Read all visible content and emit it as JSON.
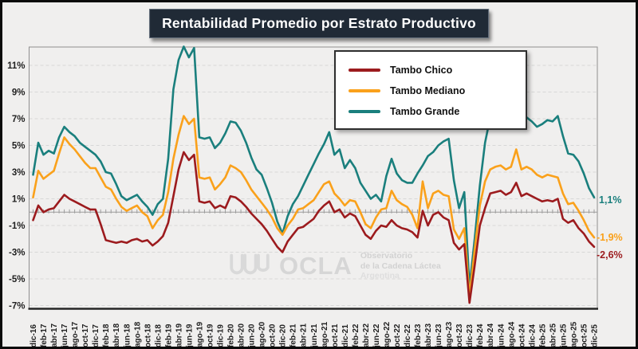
{
  "watermark": {
    "acronym": "OCLA",
    "line1": "Observatorio",
    "line2": "de la Cadena Láctea",
    "line3": "Argentina"
  },
  "chart_data": {
    "type": "line",
    "title": "Rentabilidad Promedio por Estrato Productivo",
    "xlabel": "",
    "ylabel": "",
    "grid": "horizontal-dashed",
    "legend_position": "top-center",
    "ylim": [
      -7.5,
      12.4
    ],
    "yticks": {
      "min": -7,
      "max": 11,
      "step": 2,
      "suffix": "%"
    },
    "months_per_tick": 2,
    "x_tick_labels": [
      "dic-16",
      "feb-17",
      "abr-17",
      "jun-17",
      "ago-17",
      "oct-17",
      "dic-17",
      "feb-18",
      "abr-18",
      "jun-18",
      "ago-18",
      "oct-18",
      "dic-18",
      "feb-19",
      "abr-19",
      "jun-19",
      "ago-19",
      "oct-19",
      "dic-19",
      "feb-20",
      "abr-20",
      "jun-20",
      "ago-20",
      "oct-20",
      "dic-20",
      "feb-21",
      "abr-21",
      "jun-21",
      "ago-21",
      "oct-21",
      "dic-21",
      "feb-22",
      "abr-22",
      "jun-22",
      "ago-22",
      "oct-22",
      "dic-22",
      "feb-23",
      "abr-23",
      "jun-23",
      "ago-23",
      "oct-23",
      "dic-23",
      "feb-24",
      "abr-24",
      "jun-24",
      "ago-24",
      "oct-24",
      "dic-24",
      "feb-25",
      "abr-25",
      "jun-25",
      "ago-25",
      "oct-25",
      "dic-25"
    ],
    "series": [
      {
        "name": "Tambo Chico",
        "color": "#9C1B1E",
        "end_label": "-2,6%",
        "values": [
          -0.6,
          0.5,
          0.0,
          0.2,
          0.3,
          0.8,
          1.3,
          1.0,
          0.8,
          0.6,
          0.4,
          0.2,
          0.2,
          -0.9,
          -2.1,
          -2.2,
          -2.3,
          -2.2,
          -2.3,
          -2.1,
          -2.0,
          -2.2,
          -2.1,
          -2.5,
          -2.2,
          -1.8,
          -0.8,
          1.2,
          3.2,
          4.5,
          3.9,
          4.3,
          0.8,
          0.7,
          0.8,
          0.3,
          0.5,
          0.3,
          1.2,
          1.1,
          0.8,
          0.4,
          -0.1,
          -0.5,
          -0.9,
          -1.4,
          -2.0,
          -2.6,
          -3.0,
          -2.2,
          -1.7,
          -1.2,
          -1.1,
          -0.8,
          -0.5,
          0.1,
          0.5,
          0.8,
          0.0,
          0.2,
          -0.4,
          -0.1,
          -0.3,
          -1.0,
          -1.7,
          -2.0,
          -1.4,
          -1.0,
          -1.1,
          -0.6,
          -1.0,
          -1.2,
          -1.3,
          -1.5,
          -1.9,
          0.1,
          -1.0,
          -0.2,
          0.0,
          -0.4,
          -0.6,
          -2.3,
          -2.8,
          -2.4,
          -6.8,
          -4.0,
          -1.0,
          0.3,
          1.4,
          1.5,
          1.6,
          1.3,
          1.5,
          2.2,
          1.2,
          1.4,
          1.2,
          1.0,
          0.8,
          0.9,
          0.8,
          1.0,
          -0.5,
          -0.8,
          -0.6,
          -1.2,
          -1.6,
          -2.2,
          -2.6
        ]
      },
      {
        "name": "Tambo Mediano",
        "color": "#FAA11B",
        "end_label": "-1,9%",
        "values": [
          1.1,
          3.1,
          2.5,
          2.8,
          3.1,
          4.4,
          5.6,
          5.1,
          4.7,
          4.2,
          3.7,
          3.3,
          3.3,
          2.6,
          1.9,
          1.7,
          1.0,
          0.4,
          0.1,
          0.3,
          0.5,
          0.0,
          -0.3,
          -1.2,
          -0.6,
          -0.2,
          1.5,
          4.0,
          5.8,
          7.2,
          6.6,
          7.0,
          2.6,
          2.5,
          2.6,
          1.7,
          2.1,
          2.6,
          3.5,
          3.3,
          3.0,
          2.4,
          1.7,
          1.2,
          0.7,
          0.2,
          -0.4,
          -1.2,
          -1.7,
          -1.0,
          -0.5,
          0.2,
          0.3,
          0.6,
          0.9,
          1.5,
          2.1,
          2.3,
          1.4,
          1.0,
          0.5,
          0.9,
          0.8,
          0.0,
          -0.9,
          -1.2,
          -0.4,
          0.2,
          0.3,
          1.6,
          0.9,
          0.6,
          0.4,
          -0.2,
          -1.2,
          2.3,
          0.3,
          1.4,
          1.6,
          1.3,
          1.2,
          -1.3,
          -2.0,
          -1.2,
          -6.3,
          -2.8,
          0.5,
          2.3,
          3.2,
          3.4,
          3.5,
          3.2,
          3.4,
          4.7,
          3.2,
          3.4,
          3.2,
          2.8,
          2.6,
          2.8,
          2.7,
          2.6,
          1.4,
          0.6,
          0.7,
          0.1,
          -0.6,
          -1.4,
          -1.9
        ]
      },
      {
        "name": "Tambo Grande",
        "color": "#1A7F7D",
        "end_label": "1,1%",
        "values": [
          2.8,
          5.2,
          4.3,
          4.6,
          4.4,
          5.6,
          6.4,
          6.0,
          5.7,
          5.2,
          4.9,
          4.6,
          4.3,
          3.8,
          3.0,
          2.9,
          2.1,
          1.2,
          0.9,
          1.1,
          1.3,
          0.8,
          0.4,
          -0.2,
          0.6,
          1.0,
          4.0,
          9.2,
          11.4,
          12.4,
          11.6,
          12.3,
          5.6,
          5.5,
          5.6,
          4.8,
          5.2,
          5.9,
          6.8,
          6.7,
          6.1,
          5.2,
          4.1,
          3.2,
          2.8,
          1.8,
          0.7,
          -0.7,
          -1.6,
          -0.3,
          0.6,
          1.2,
          2.0,
          2.8,
          3.6,
          4.4,
          5.1,
          6.0,
          4.3,
          4.7,
          3.3,
          3.9,
          3.3,
          2.2,
          1.6,
          1.0,
          1.3,
          0.8,
          2.7,
          4.0,
          2.9,
          2.4,
          2.2,
          2.2,
          2.9,
          3.5,
          4.2,
          4.5,
          5.0,
          5.3,
          5.5,
          2.4,
          0.3,
          1.5,
          -5.6,
          -2.0,
          2.0,
          5.2,
          7.1,
          7.5,
          7.8,
          7.0,
          7.6,
          9.3,
          6.6,
          7.1,
          6.8,
          6.4,
          6.6,
          6.9,
          6.8,
          7.2,
          5.7,
          4.4,
          4.3,
          3.8,
          2.9,
          1.8,
          1.1
        ]
      }
    ]
  }
}
